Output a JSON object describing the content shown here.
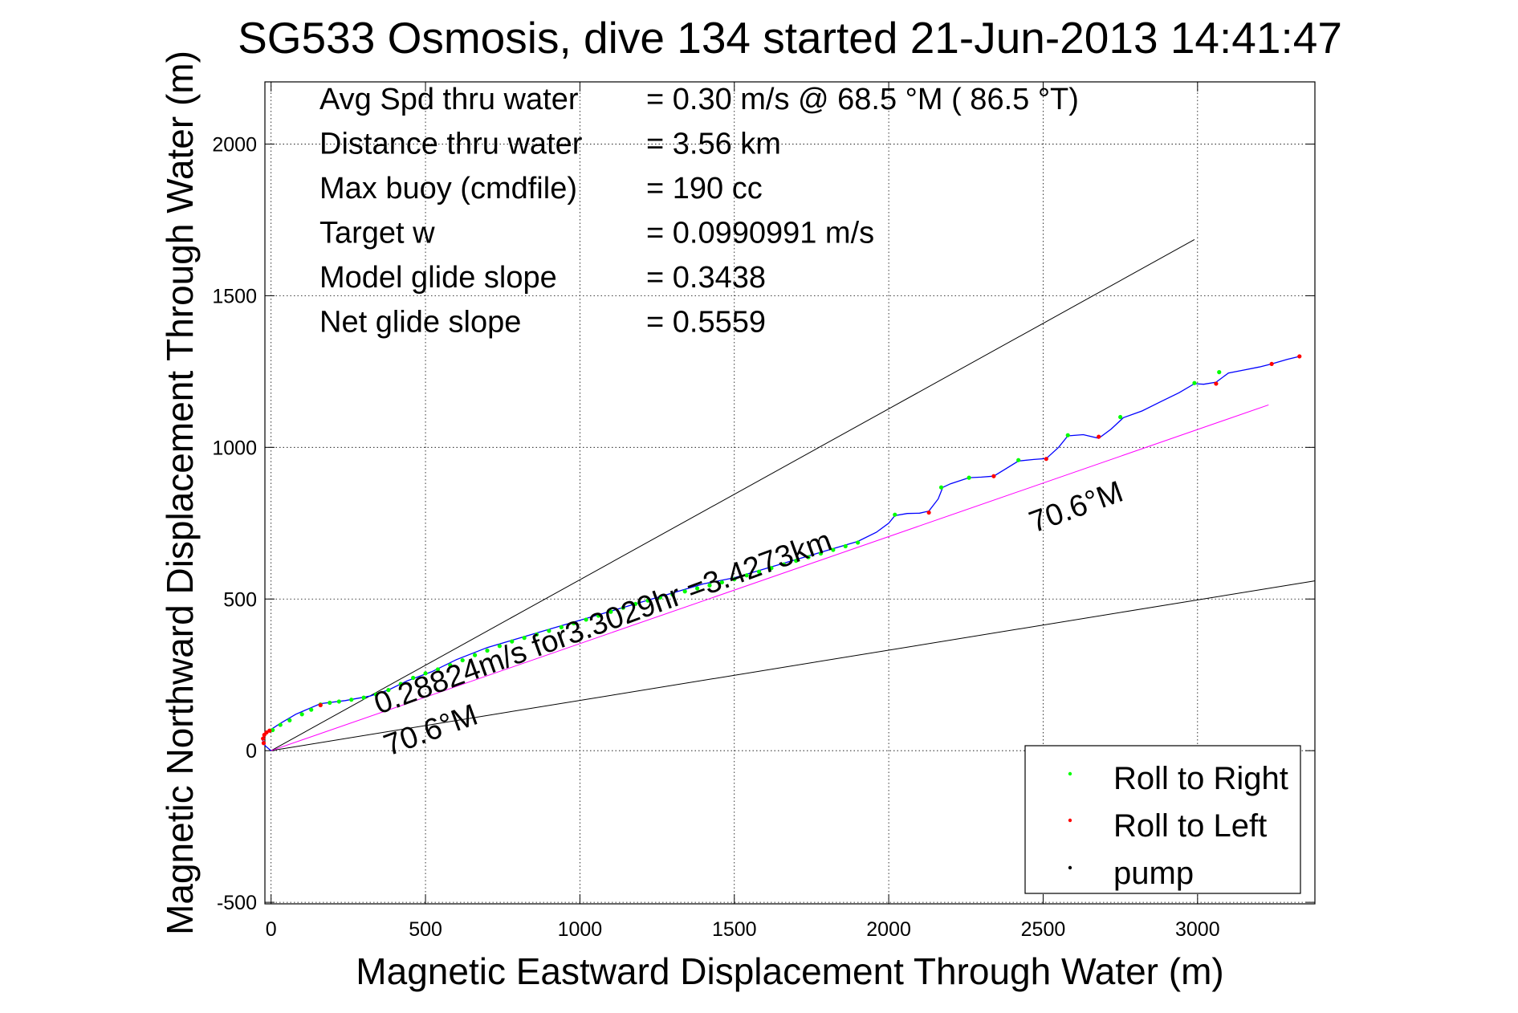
{
  "chart_data": {
    "type": "scatter",
    "title": "SG533 Osmosis, dive 134 started 21-Jun-2013 14:41:47",
    "xlabel": "Magnetic Eastward Displacement Through Water (m)",
    "ylabel": "Magnetic Northward Displacement Through Water (m)",
    "xlim": [
      -20,
      3380
    ],
    "ylim": [
      -505,
      2205
    ],
    "xticks": [
      0,
      500,
      1000,
      1500,
      2000,
      2500,
      3000
    ],
    "yticks": [
      -500,
      0,
      500,
      1000,
      1500,
      2000
    ],
    "grid": true,
    "legend_placement": "bottom-right",
    "stats": [
      {
        "label": "Avg Spd thru water",
        "value": "=  0.30 m/s @  68.5 °M ( 86.5 °T)"
      },
      {
        "label": "Distance thru water",
        "value": "=  3.56 km"
      },
      {
        "label": "Max buoy (cmdfile)",
        "value": "= 190 cc"
      },
      {
        "label": "Target w",
        "value": "= 0.0990991 m/s"
      },
      {
        "label": "Model glide slope",
        "value": "= 0.3438"
      },
      {
        "label": "Net glide slope",
        "value": "= 0.5559"
      }
    ],
    "annotations": {
      "track_label": "0.28824m/s for3.3029hr =3.4273km",
      "heading_upper": "70.6°M",
      "heading_lower": "70.6°M"
    },
    "reference_lines": [
      {
        "kind": "cone-upper",
        "color": "#000000",
        "from": [
          0,
          0
        ],
        "to": [
          2990,
          1685
        ]
      },
      {
        "kind": "cone-lower",
        "color": "#000000",
        "from": [
          0,
          0
        ],
        "to": [
          3380,
          560
        ]
      },
      {
        "kind": "heading",
        "color": "#ff00ff",
        "from": [
          0,
          0
        ],
        "to": [
          3230,
          1140
        ]
      }
    ],
    "series": [
      {
        "name": "track",
        "color": "#0000ff",
        "x": [
          0,
          -18,
          -28,
          -20,
          -8,
          0,
          30,
          80,
          160,
          240,
          320,
          380,
          440,
          520,
          600,
          700,
          800,
          900,
          1000,
          1100,
          1200,
          1300,
          1400,
          1500,
          1600,
          1700,
          1800,
          1900,
          1960,
          2000,
          2020,
          2060,
          2100,
          2130,
          2160,
          2175,
          2200,
          2260,
          2300,
          2340,
          2380,
          2420,
          2470,
          2510,
          2550,
          2580,
          2630,
          2680,
          2720,
          2760,
          2820,
          2880,
          2940,
          2990,
          3020,
          3060,
          3100,
          3150,
          3200,
          3240,
          3290,
          3330
        ],
        "y": [
          0,
          15,
          35,
          55,
          65,
          70,
          90,
          120,
          155,
          165,
          180,
          200,
          230,
          260,
          300,
          340,
          370,
          400,
          430,
          460,
          490,
          520,
          550,
          570,
          600,
          630,
          660,
          690,
          720,
          750,
          775,
          782,
          783,
          790,
          830,
          868,
          880,
          900,
          902,
          905,
          930,
          955,
          960,
          963,
          1000,
          1038,
          1042,
          1030,
          1060,
          1098,
          1120,
          1150,
          1180,
          1210,
          1208,
          1215,
          1245,
          1255,
          1265,
          1275,
          1290,
          1300
        ]
      },
      {
        "name": "Roll to Right",
        "color": "#00ff00",
        "x": [
          5,
          30,
          60,
          100,
          130,
          160,
          190,
          220,
          260,
          300,
          340,
          380,
          420,
          460,
          500,
          540,
          580,
          620,
          660,
          700,
          740,
          780,
          820,
          860,
          900,
          940,
          980,
          1020,
          1060,
          1100,
          1140,
          1180,
          1220,
          1260,
          1300,
          1340,
          1380,
          1420,
          1460,
          1500,
          1540,
          1580,
          1620,
          1660,
          1700,
          1740,
          1780,
          1820,
          1860,
          1900,
          2020,
          2170,
          2260,
          2420,
          2580,
          2750,
          2990,
          3070
        ],
        "y": [
          68,
          85,
          100,
          120,
          135,
          152,
          158,
          162,
          168,
          175,
          185,
          200,
          220,
          240,
          255,
          268,
          282,
          298,
          315,
          330,
          345,
          360,
          372,
          383,
          395,
          407,
          420,
          432,
          445,
          458,
          471,
          484,
          495,
          505,
          515,
          525,
          535,
          545,
          555,
          565,
          578,
          590,
          602,
          614,
          626,
          638,
          650,
          662,
          674,
          686,
          778,
          868,
          900,
          958,
          1040,
          1100,
          1212,
          1248
        ],
        "legend_label": "Roll to Right"
      },
      {
        "name": "Roll to Left",
        "color": "#ff0000",
        "x": [
          -24,
          -26,
          -22,
          -15,
          -5,
          160,
          2130,
          2340,
          2510,
          2680,
          3060,
          3240,
          3330
        ],
        "y": [
          25,
          40,
          52,
          60,
          66,
          150,
          785,
          905,
          962,
          1035,
          1210,
          1275,
          1300
        ],
        "legend_label": "Roll to Left"
      },
      {
        "name": "pump",
        "color": "#000000",
        "x": [],
        "y": [],
        "legend_label": "pump"
      }
    ]
  }
}
